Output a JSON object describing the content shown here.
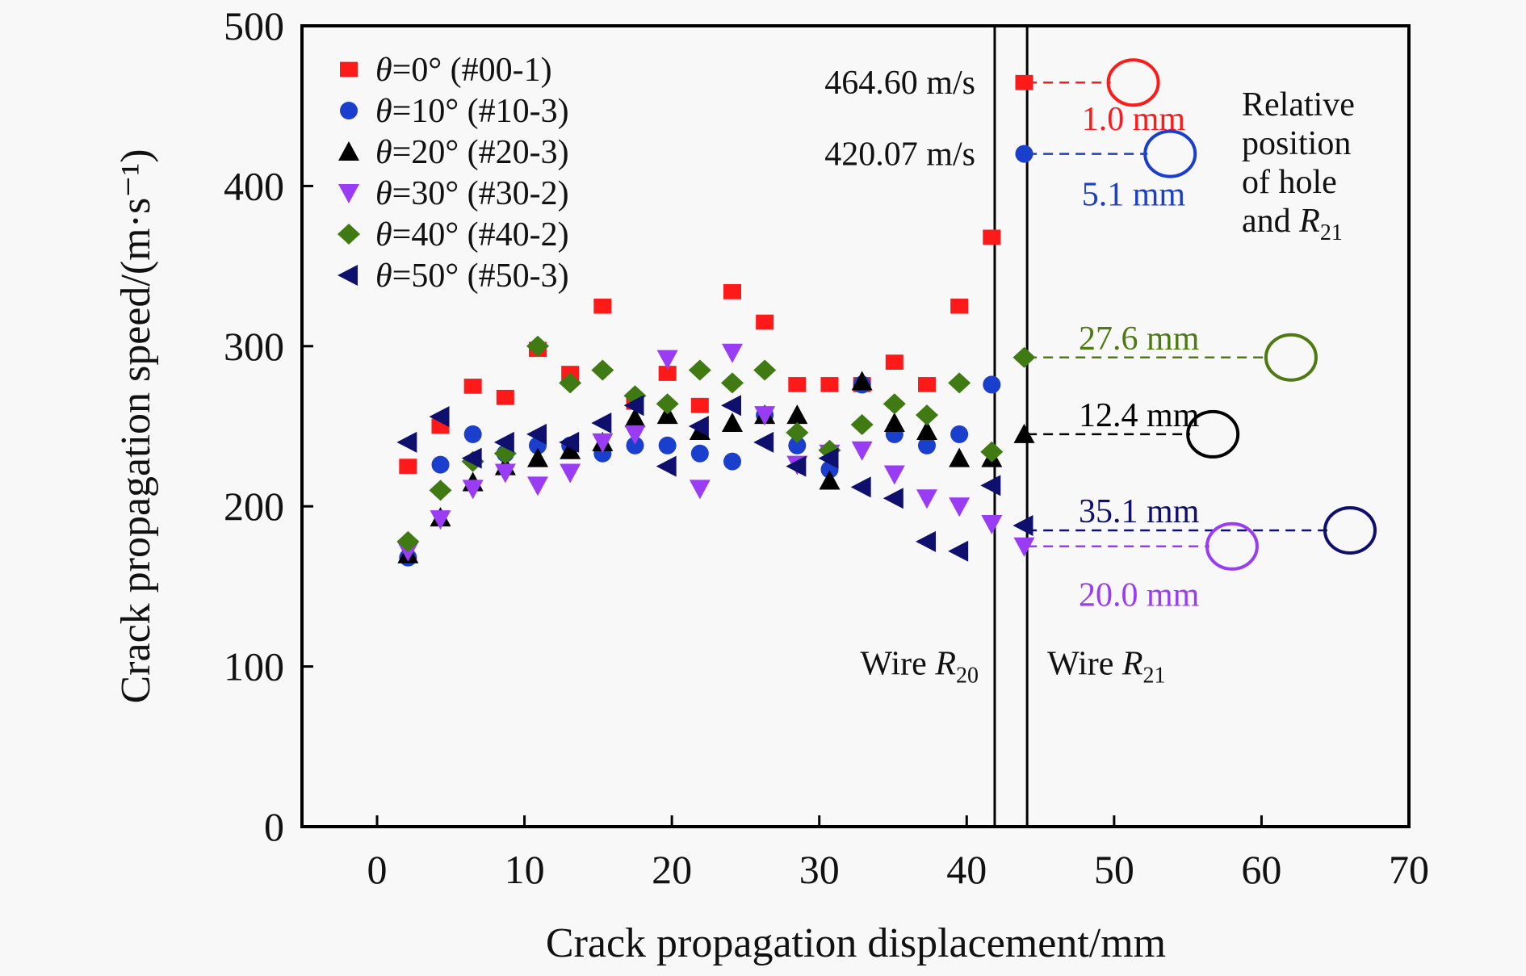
{
  "chart_data": {
    "type": "scatter",
    "title": "",
    "xlabel": "Crack propagation displacement/mm",
    "ylabel": "Crack propagation speed/(m·s⁻¹)",
    "xlim": [
      -5,
      70
    ],
    "ylim": [
      0,
      500
    ],
    "xticks": [
      0,
      10,
      20,
      30,
      40,
      50,
      60,
      70
    ],
    "yticks": [
      0,
      100,
      200,
      300,
      400,
      500
    ],
    "grid": false,
    "legend_position": "top-left",
    "x": [
      2.1,
      4.3,
      6.5,
      8.7,
      10.9,
      13.1,
      15.3,
      17.5,
      19.7,
      21.9,
      24.1,
      26.3,
      28.5,
      30.7,
      32.9,
      35.1,
      37.3,
      39.5,
      41.7,
      43.9
    ],
    "series": [
      {
        "name": "θ=0° (#00-1)",
        "marker": "square",
        "color": "#ff1a1a",
        "values": [
          225,
          250,
          275,
          268,
          298,
          283,
          325,
          265,
          283,
          263,
          334,
          315,
          276,
          276,
          276,
          290,
          276,
          325,
          368,
          464.6
        ]
      },
      {
        "name": "θ=10° (#10-3)",
        "marker": "circle",
        "color": "#1a3fcc",
        "values": [
          168,
          226,
          245,
          233,
          238,
          238,
          233,
          238,
          238,
          233,
          228,
          257,
          238,
          223,
          276,
          245,
          238,
          245,
          276,
          420.07
        ]
      },
      {
        "name": "θ=20° (#20-3)",
        "marker": "triangle-up",
        "color": "#000000",
        "values": [
          170,
          193,
          215,
          225,
          230,
          235,
          240,
          255,
          257,
          247,
          252,
          257,
          257,
          216,
          278,
          252,
          247,
          230,
          230,
          245
        ]
      },
      {
        "name": "θ=30° (#30-2)",
        "marker": "triangle-down",
        "color": "#9b3cf5",
        "values": [
          172,
          192,
          211,
          221,
          213,
          221,
          240,
          245,
          292,
          211,
          296,
          257,
          226,
          233,
          235,
          220,
          205,
          200,
          189,
          175
        ]
      },
      {
        "name": "θ=40° (#40-2)",
        "marker": "diamond",
        "color": "#3f7a12",
        "values": [
          178,
          210,
          228,
          233,
          300,
          277,
          285,
          269,
          264,
          285,
          277,
          285,
          246,
          235,
          251,
          264,
          257,
          277,
          234,
          293
        ]
      },
      {
        "name": "θ=50° (#50-3)",
        "marker": "triangle-left",
        "color": "#0f0f6e",
        "values": [
          240,
          256,
          230,
          240,
          245,
          240,
          252,
          263,
          225,
          250,
          263,
          240,
          225,
          230,
          212,
          205,
          178,
          172,
          213,
          188
        ]
      }
    ],
    "vertical_lines": [
      {
        "x": 41.9,
        "label": "Wire R",
        "sub": "20"
      },
      {
        "x": 44.1,
        "label": "Wire R",
        "sub": "21"
      }
    ],
    "speed_annotations": [
      {
        "text": "464.60 m/s",
        "y": 464.6
      },
      {
        "text": "420.07 m/s",
        "y": 420.07
      }
    ],
    "hole_markers": [
      {
        "label": "1.0 mm",
        "color": "#ff1a1a",
        "y": 464.6,
        "circle_x": 51.3,
        "label_x": 47.8,
        "label_y": 442
      },
      {
        "label": "5.1 mm",
        "color": "#1a3fcc",
        "y": 420.07,
        "circle_x": 53.8,
        "label_x": 47.8,
        "label_y": 395
      },
      {
        "label": "27.6 mm",
        "color": "#4f7a12",
        "y": 293,
        "circle_x": 62.0,
        "label_x": 47.6,
        "label_y": 305
      },
      {
        "label": "12.4 mm",
        "color": "#000000",
        "y": 245,
        "circle_x": 56.7,
        "label_x": 47.6,
        "label_y": 257
      },
      {
        "label": "35.1 mm",
        "color": "#0f0f6e",
        "y": 185,
        "circle_x": 66.0,
        "label_x": 47.6,
        "label_y": 197
      },
      {
        "label": "20.0 mm",
        "color": "#9b3cf5",
        "y": 175,
        "circle_x": 58.0,
        "label_x": 47.6,
        "label_y": 145
      }
    ],
    "side_note": [
      "Relative",
      "position",
      "of hole",
      "and R",
      "21"
    ]
  }
}
